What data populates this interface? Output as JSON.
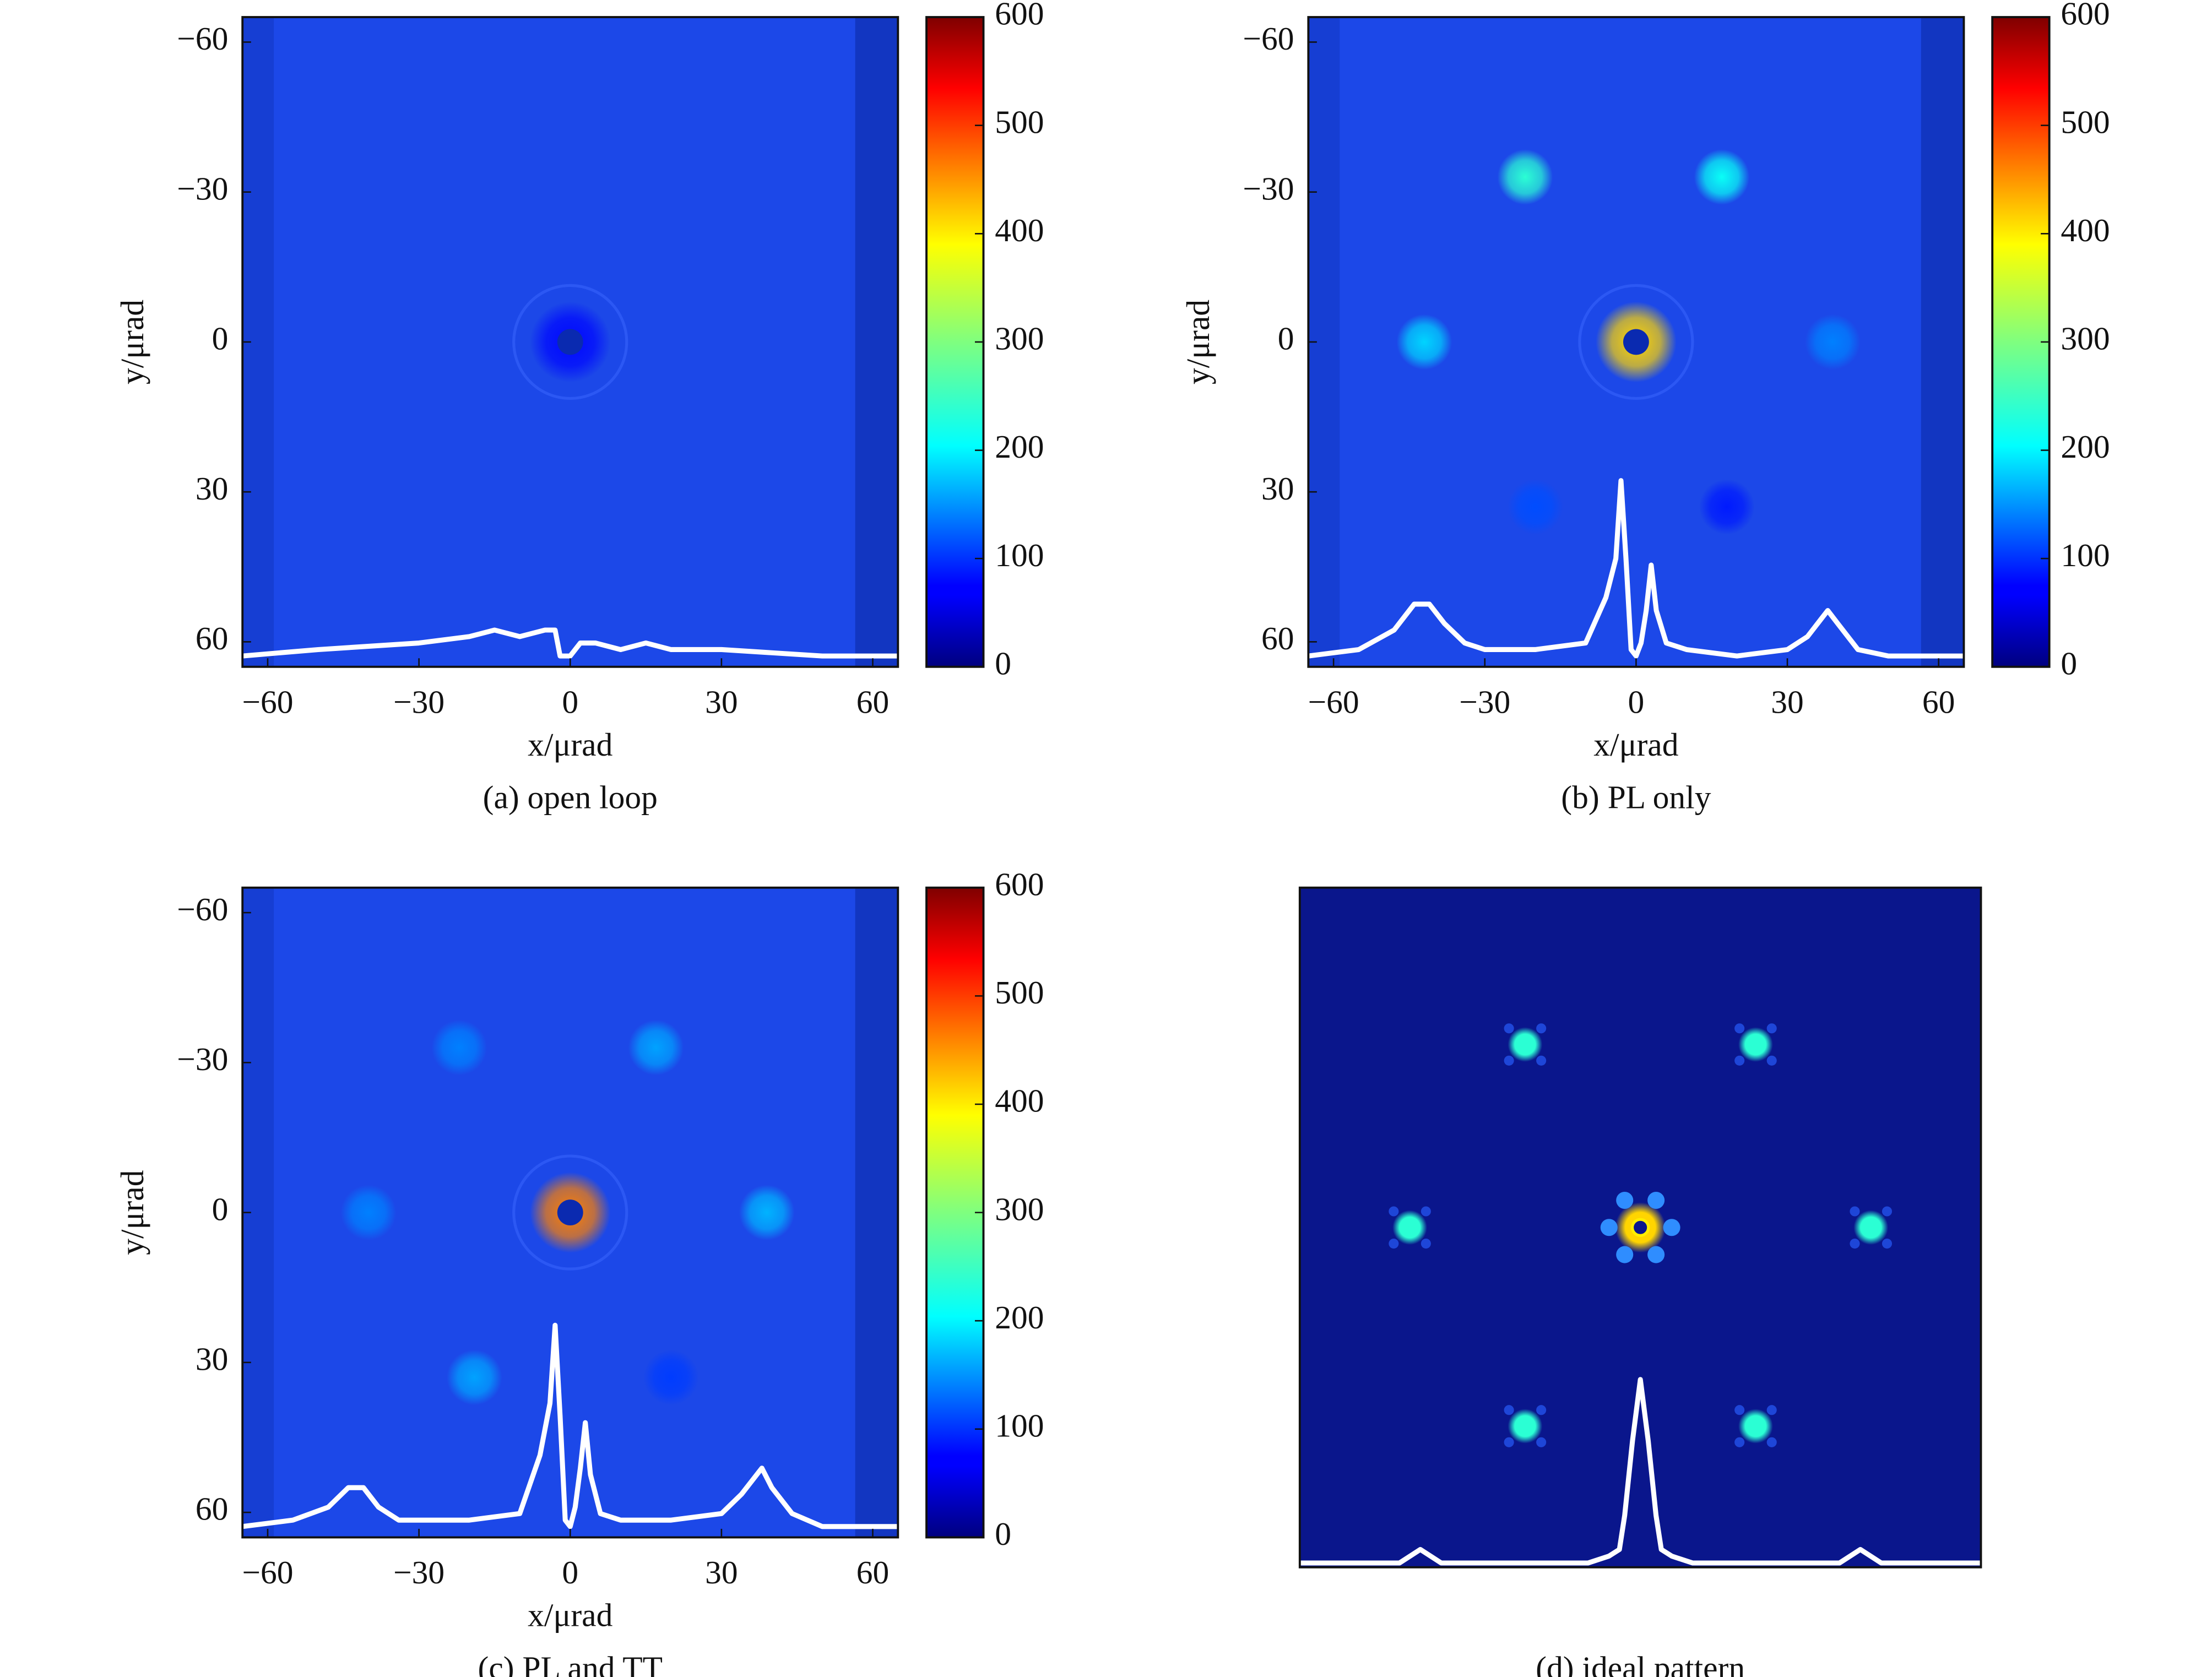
{
  "chart_data": [
    {
      "type": "heatmap",
      "caption": "(a) open loop",
      "xlabel": "x/μrad",
      "ylabel": "y/μrad",
      "xlim": [
        -65,
        65
      ],
      "ylim": [
        -65,
        65
      ],
      "y_inverted": true,
      "xticks": [
        {
          "value": -60,
          "label": "−60"
        },
        {
          "value": -30,
          "label": "−30"
        },
        0,
        30,
        60
      ],
      "yticks": [
        {
          "value": -60,
          "label": "−60"
        },
        {
          "value": -30,
          "label": "−30"
        },
        0,
        30,
        60
      ],
      "clim": [
        0,
        600
      ],
      "cticks": [
        0,
        100,
        200,
        300,
        400,
        500,
        600
      ],
      "spots": [
        {
          "x": 0,
          "y": 0,
          "value": 80
        }
      ],
      "profile": {
        "ylim": [
          0,
          100
        ],
        "x": [
          -65,
          -50,
          -30,
          -20,
          -15,
          -10,
          -5,
          -3,
          -2,
          0,
          2,
          5,
          10,
          15,
          20,
          30,
          50,
          65
        ],
        "values": [
          1,
          2,
          3,
          4,
          5,
          4,
          5,
          5,
          1,
          1,
          3,
          3,
          2,
          3,
          2,
          2,
          1,
          1
        ]
      }
    },
    {
      "type": "heatmap",
      "caption": "(b) PL only",
      "xlabel": "x/μrad",
      "ylabel": "y/μrad",
      "xlim": [
        -65,
        65
      ],
      "ylim": [
        -65,
        65
      ],
      "y_inverted": true,
      "xticks": [
        {
          "value": -60,
          "label": "−60"
        },
        {
          "value": -30,
          "label": "−30"
        },
        0,
        30,
        60
      ],
      "yticks": [
        {
          "value": -60,
          "label": "−60"
        },
        {
          "value": -30,
          "label": "−30"
        },
        0,
        30,
        60
      ],
      "clim": [
        0,
        600
      ],
      "cticks": [
        0,
        100,
        200,
        300,
        400,
        500,
        600
      ],
      "spots": [
        {
          "x": -22,
          "y": -33,
          "value": 250
        },
        {
          "x": 17,
          "y": -33,
          "value": 230
        },
        {
          "x": -42,
          "y": 0,
          "value": 200
        },
        {
          "x": 39,
          "y": 0,
          "value": 150
        },
        {
          "x": 0,
          "y": 0,
          "value": 400
        },
        {
          "x": -20,
          "y": 33,
          "value": 120
        },
        {
          "x": 18,
          "y": 33,
          "value": 90
        }
      ],
      "profile": {
        "ylim": [
          0,
          100
        ],
        "x": [
          -65,
          -55,
          -48,
          -44,
          -41,
          -38,
          -34,
          -30,
          -20,
          -10,
          -6,
          -4,
          -3,
          -2,
          -1,
          0,
          1,
          2,
          3,
          4,
          6,
          10,
          20,
          30,
          34,
          37,
          38,
          40,
          44,
          50,
          65
        ],
        "values": [
          1,
          2,
          5,
          9,
          9,
          6,
          3,
          2,
          2,
          3,
          10,
          16,
          28,
          16,
          2,
          1,
          3,
          8,
          15,
          8,
          3,
          2,
          1,
          2,
          4,
          7,
          8,
          6,
          2,
          1,
          1
        ]
      }
    },
    {
      "type": "heatmap",
      "caption": "(c) PL and TT",
      "xlabel": "x/μrad",
      "ylabel": "y/μrad",
      "xlim": [
        -65,
        65
      ],
      "ylim": [
        -65,
        65
      ],
      "y_inverted": true,
      "xticks": [
        {
          "value": -60,
          "label": "−60"
        },
        {
          "value": -30,
          "label": "−30"
        },
        0,
        30,
        60
      ],
      "yticks": [
        {
          "value": -60,
          "label": "−60"
        },
        {
          "value": -30,
          "label": "−30"
        },
        0,
        30,
        60
      ],
      "clim": [
        0,
        600
      ],
      "cticks": [
        0,
        100,
        200,
        300,
        400,
        500,
        600
      ],
      "spots": [
        {
          "x": -22,
          "y": -33,
          "value": 150
        },
        {
          "x": 17,
          "y": -33,
          "value": 170
        },
        {
          "x": -40,
          "y": 0,
          "value": 150
        },
        {
          "x": 39,
          "y": 0,
          "value": 180
        },
        {
          "x": 0,
          "y": 0,
          "value": 450
        },
        {
          "x": -19,
          "y": 33,
          "value": 170
        },
        {
          "x": 20,
          "y": 33,
          "value": 110
        }
      ],
      "profile": {
        "ylim": [
          0,
          100
        ],
        "x": [
          -65,
          -55,
          -48,
          -44,
          -41,
          -38,
          -34,
          -30,
          -20,
          -10,
          -6,
          -4,
          -3,
          -2,
          -1,
          0,
          1,
          2,
          3,
          4,
          6,
          10,
          20,
          30,
          34,
          37,
          38,
          40,
          44,
          50,
          65
        ],
        "values": [
          1,
          2,
          4,
          7,
          7,
          4,
          2,
          2,
          2,
          3,
          12,
          20,
          32,
          18,
          2,
          1,
          4,
          10,
          17,
          9,
          3,
          2,
          2,
          3,
          6,
          9,
          10,
          7,
          3,
          1,
          1
        ]
      }
    },
    {
      "type": "heatmap",
      "caption": "(d) ideal pattern",
      "xlim": [
        -65,
        65
      ],
      "ylim": [
        -65,
        65
      ],
      "y_inverted": true,
      "clim": [
        0,
        600
      ],
      "spots": [
        {
          "x": -22,
          "y": -35,
          "value": 250
        },
        {
          "x": 22,
          "y": -35,
          "value": 250
        },
        {
          "x": -44,
          "y": 0,
          "value": 250
        },
        {
          "x": 44,
          "y": 0,
          "value": 250
        },
        {
          "x": -22,
          "y": 38,
          "value": 250
        },
        {
          "x": 22,
          "y": 38,
          "value": 250
        },
        {
          "x": 0,
          "y": 0,
          "value": 400
        }
      ],
      "profile": {
        "ylim": [
          0,
          100
        ],
        "x": [
          -65,
          -46,
          -42,
          -38,
          -10,
          -6,
          -4,
          -3,
          -1.5,
          0,
          1.5,
          3,
          4,
          6,
          10,
          38,
          42,
          46,
          65
        ],
        "values": [
          0,
          0,
          2,
          0,
          0,
          1,
          2,
          7,
          18,
          27,
          18,
          7,
          2,
          1,
          0,
          0,
          2,
          0,
          0
        ]
      }
    }
  ]
}
